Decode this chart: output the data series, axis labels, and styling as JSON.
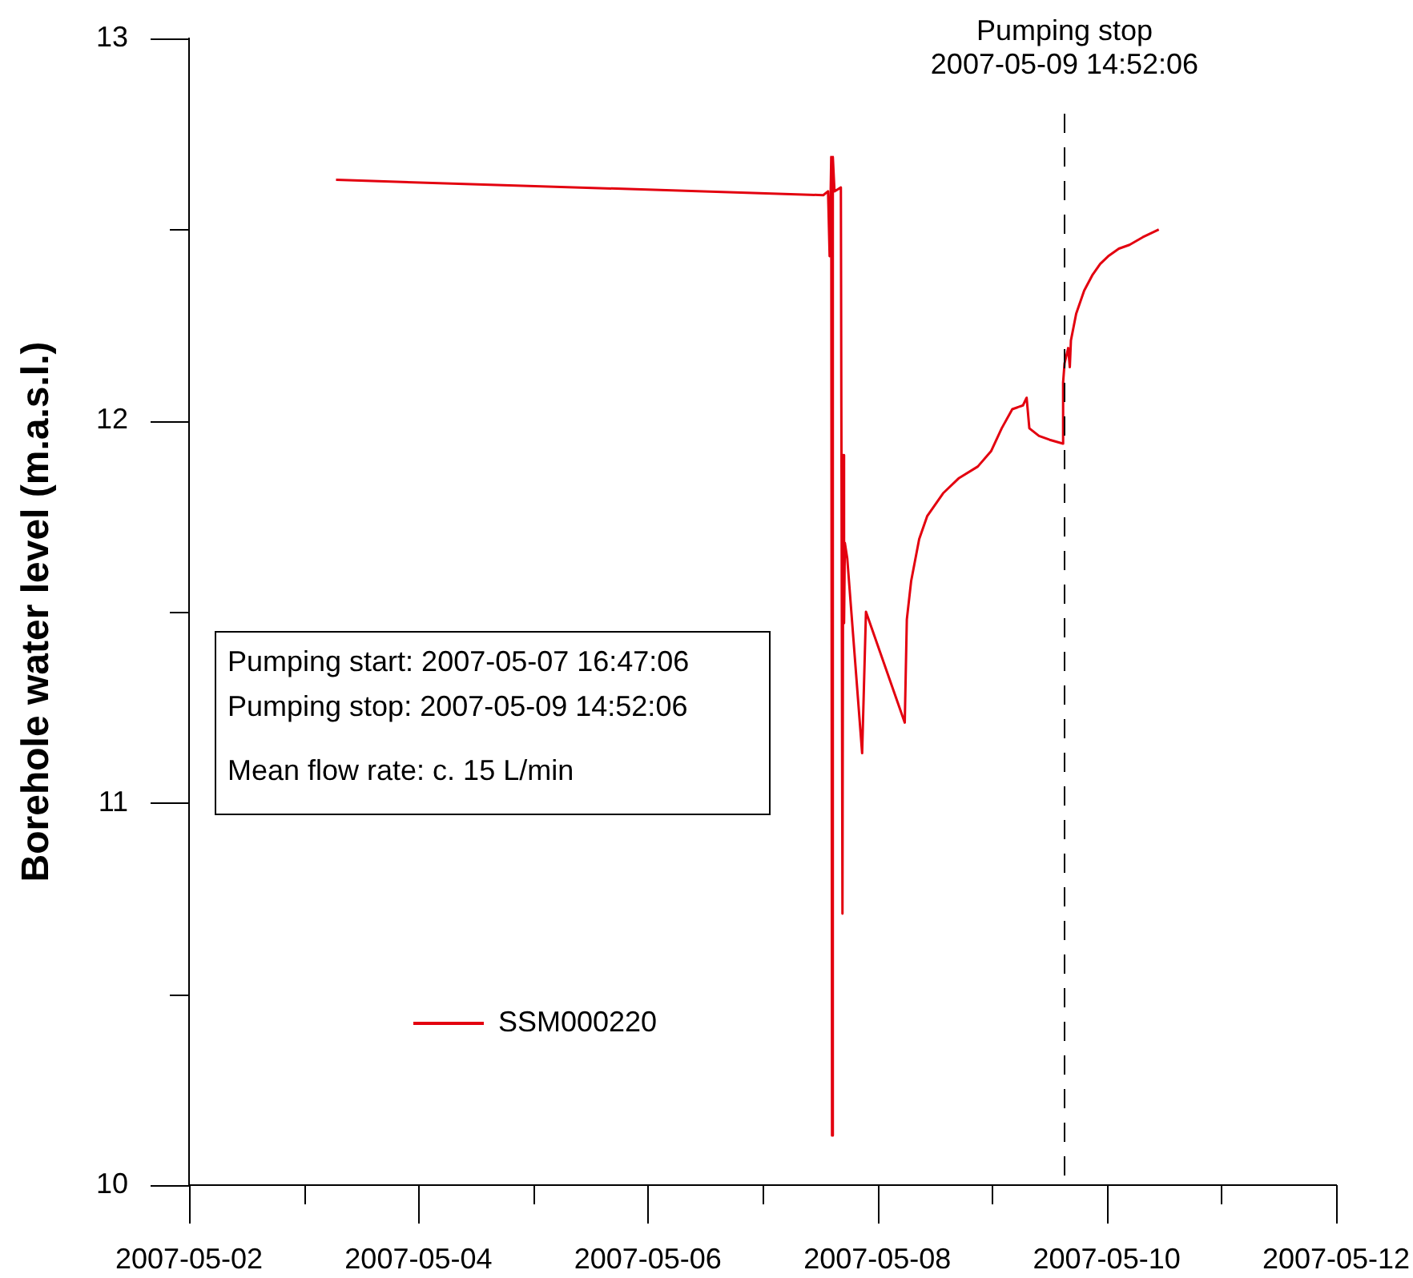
{
  "chart_data": {
    "type": "line",
    "ylabel": "Borehole water level (m.a.s.l.)",
    "xlim": [
      "2007-05-02",
      "2007-05-12"
    ],
    "xticks": [
      "2007-05-02",
      {
        "value": "2007-05-03",
        "label": null
      },
      "2007-05-04",
      {
        "value": "2007-05-05",
        "label": null
      },
      "2007-05-06",
      {
        "value": "2007-05-07",
        "label": null
      },
      "2007-05-08",
      {
        "value": "2007-05-09",
        "label": null
      },
      "2007-05-10",
      {
        "value": "2007-05-11",
        "label": null
      },
      "2007-05-12"
    ],
    "ylim": [
      10,
      13
    ],
    "yticks": [
      10,
      {
        "value": 10.5,
        "label": null
      },
      11,
      {
        "value": 11.5,
        "label": null
      },
      12,
      {
        "value": 12.5,
        "label": null
      },
      13
    ],
    "grid": false,
    "legend": "bottom left",
    "marker": "none",
    "series": [
      {
        "name": "SSM000220",
        "color": "#e3000f",
        "x": [
          "2007-05-03T06:45",
          "2007-05-07T12:42",
          "2007-05-07T13:42",
          "2007-05-07T14:02",
          "2007-05-07T14:22",
          "2007-05-07T14:32",
          "2007-05-07T14:42",
          "2007-05-07T15:03",
          "2007-05-07T16:23",
          "2007-05-07T16:43",
          "2007-05-07T16:53",
          "2007-05-07T17:03",
          "2007-05-07T17:13",
          "2007-05-07T17:43",
          "2007-05-07T20:50",
          "2007-05-07T21:38",
          "2007-05-08T05:45",
          "2007-05-08T06:11",
          "2007-05-08T07:05",
          "2007-05-08T08:46",
          "2007-05-08T10:26",
          "2007-05-08T13:46",
          "2007-05-08T17:07",
          "2007-05-08T21:02",
          "2007-05-08T23:48",
          "2007-05-09T02:02",
          "2007-05-09T04:15",
          "2007-05-09T06:29",
          "2007-05-09T07:15",
          "2007-05-09T07:49",
          "2007-05-09T09:50",
          "2007-05-09T12:04",
          "2007-05-09T14:51",
          "2007-05-09T14:53",
          "2007-05-09T15:11",
          "2007-05-09T15:57",
          "2007-05-09T16:17",
          "2007-05-09T16:31",
          "2007-05-09T17:37",
          "2007-05-09T19:17",
          "2007-05-09T20:58",
          "2007-05-09T22:38",
          "2007-05-10T00:18",
          "2007-05-10T02:33",
          "2007-05-10T04:47",
          "2007-05-10T07:33",
          "2007-05-10T10:54"
        ],
        "values": [
          12.63,
          12.59,
          12.6,
          12.43,
          12.69,
          10.13,
          12.69,
          12.6,
          12.61,
          10.71,
          11.91,
          11.47,
          11.68,
          11.64,
          11.13,
          11.5,
          11.21,
          11.48,
          11.58,
          11.69,
          11.75,
          11.81,
          11.85,
          11.88,
          11.92,
          11.98,
          12.03,
          12.04,
          12.06,
          11.98,
          11.96,
          11.95,
          11.94,
          12.1,
          12.15,
          12.19,
          12.14,
          12.21,
          12.28,
          12.34,
          12.38,
          12.41,
          12.43,
          12.45,
          12.46,
          12.48,
          12.5
        ]
      }
    ],
    "ref_lines": [
      {
        "axis": "x",
        "value": "2007-05-09T14:52:06",
        "label": "Pumping stop\n2007-05-09 14:52:06",
        "color": "#000000",
        "line_style": "dashed"
      }
    ],
    "annotations": [
      "Pumping start: 2007-05-07 16:47:06",
      "Pumping stop: 2007-05-09 14:52:06",
      "Mean flow rate: c. 15 L/min"
    ]
  }
}
